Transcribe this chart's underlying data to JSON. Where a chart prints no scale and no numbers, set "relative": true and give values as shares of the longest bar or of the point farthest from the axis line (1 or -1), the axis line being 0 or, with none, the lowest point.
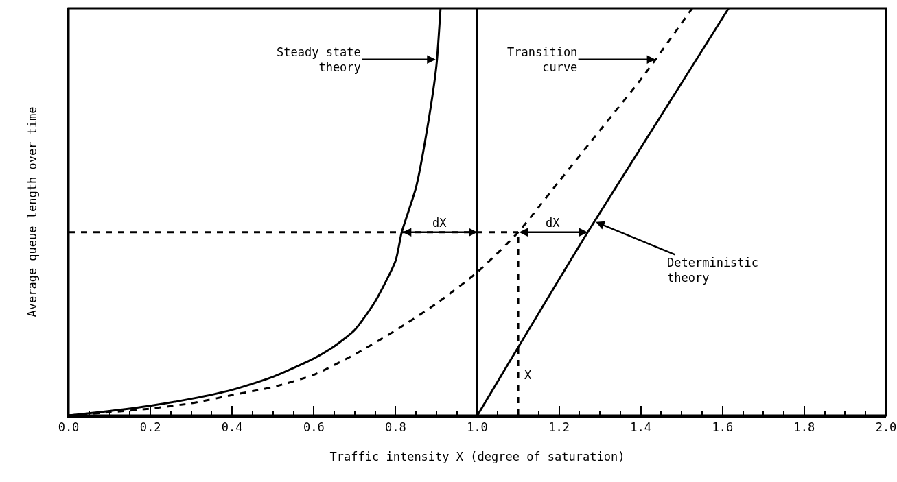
{
  "chart_data": {
    "type": "line",
    "relative": true,
    "xlabel": "Traffic intensity X (degree of saturation)",
    "ylabel": "Average queue length over time",
    "xlim": [
      0,
      2.0
    ],
    "xticks": [
      {
        "value": 0,
        "label": "0.0"
      },
      0.2,
      0.4,
      0.6,
      0.8,
      {
        "value": 1.0,
        "label": "1.0"
      },
      1.2,
      1.4,
      1.6,
      1.8,
      {
        "value": 2.0,
        "label": "2.0"
      }
    ],
    "marker": "none",
    "series": [
      {
        "color": "#000000",
        "line_style": "solid",
        "x": [
          0,
          0.1,
          0.2,
          0.3,
          0.4,
          0.5,
          0.6,
          0.65,
          0.7,
          0.75,
          0.8,
          0.815,
          0.85,
          0.88,
          0.9,
          0.91
        ],
        "values": [
          0,
          0.011,
          0.024,
          0.041,
          0.063,
          0.095,
          0.14,
          0.17,
          0.21,
          0.28,
          0.38,
          0.45,
          0.56,
          0.72,
          0.86,
          1.0
        ]
      },
      {
        "color": "#000000",
        "line_style": "dashed",
        "x": [
          0,
          0.1,
          0.2,
          0.3,
          0.4,
          0.5,
          0.6,
          0.7,
          0.8,
          0.9,
          1.0,
          1.1,
          1.2,
          1.3,
          1.4,
          1.436,
          1.526
        ],
        "values": [
          0,
          0.008,
          0.017,
          0.03,
          0.05,
          0.07,
          0.1,
          0.15,
          0.209,
          0.275,
          0.352,
          0.45,
          0.575,
          0.7,
          0.825,
          0.874,
          1.0
        ]
      },
      {
        "color": "#000000",
        "line_style": "solid",
        "x": [
          1.0,
          1.27,
          1.615
        ],
        "values": [
          0,
          0.45,
          1.0
        ]
      },
      {
        "color": "#000000",
        "line_style": "dashed",
        "x": [
          0,
          1.1
        ],
        "values": [
          0.45,
          0.45
        ]
      },
      {
        "color": "#000000",
        "line_style": "dashed",
        "x": [
          1.1,
          1.1
        ],
        "values": [
          0,
          0.45
        ]
      }
    ],
    "ref_lines": [
      {
        "axis": "x",
        "value": 1.0,
        "color": "#000000",
        "line_style": "solid"
      }
    ],
    "annotations": [
      {
        "text": "Steady state\ntheory",
        "x": 0.898,
        "y": 0.874
      },
      {
        "text": "Transition\ncurve",
        "x": 1.436,
        "y": 0.874
      },
      {
        "text": "Deterministic\ntheory",
        "x": 1.29,
        "y": 0.475
      },
      {
        "text": "dX",
        "x": 0.815,
        "y": 0.45
      },
      {
        "text": "dX",
        "x": 1.1,
        "y": 0.45
      },
      {
        "text": "X",
        "x": 1.1,
        "y": 0.1
      }
    ]
  }
}
